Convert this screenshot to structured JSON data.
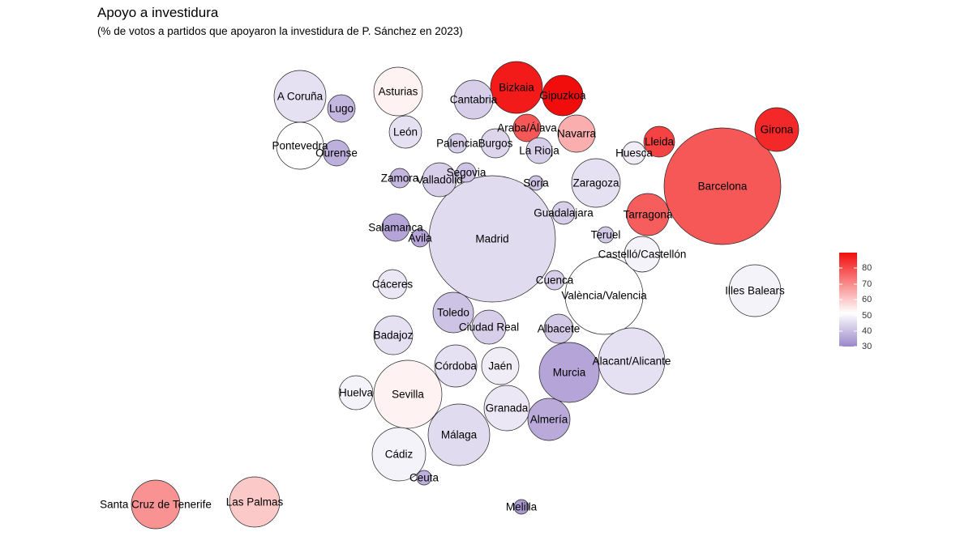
{
  "chart_data": {
    "type": "bubble",
    "title": "Apoyo a investidura",
    "subtitle": "(% de votos a partidos que apoyaron la investidura de P. Sánchez en 2023)",
    "legend": {
      "position": "right",
      "ticks": [
        80,
        70,
        60,
        50,
        40,
        30
      ],
      "range": [
        30,
        86
      ],
      "colors": {
        "low": "#9b86c9",
        "mid": "#ffffff",
        "high": "#f20d0d",
        "midpoint": 50
      }
    },
    "points": [
      {
        "name": "A Coruña",
        "value": 45
      },
      {
        "name": "Lugo",
        "value": 38
      },
      {
        "name": "Asturias",
        "value": 52
      },
      {
        "name": "Cantabria",
        "value": 42
      },
      {
        "name": "Bizkaia",
        "value": 84
      },
      {
        "name": "Gipuzkoa",
        "value": 88
      },
      {
        "name": "Pontevedra",
        "value": 50
      },
      {
        "name": "Ourense",
        "value": 37
      },
      {
        "name": "León",
        "value": 45
      },
      {
        "name": "Palencia",
        "value": 42
      },
      {
        "name": "Burgos",
        "value": 43
      },
      {
        "name": "Araba/Álava",
        "value": 75
      },
      {
        "name": "Navarra",
        "value": 62
      },
      {
        "name": "La Rioja",
        "value": 42
      },
      {
        "name": "Lleida",
        "value": 78
      },
      {
        "name": "Girona",
        "value": 82
      },
      {
        "name": "Huesca",
        "value": 47
      },
      {
        "name": "Zamora",
        "value": 38
      },
      {
        "name": "Valladolid",
        "value": 42
      },
      {
        "name": "Segovia",
        "value": 40
      },
      {
        "name": "Soria",
        "value": 40
      },
      {
        "name": "Zaragoza",
        "value": 45
      },
      {
        "name": "Barcelona",
        "value": 75
      },
      {
        "name": "Guadalajara",
        "value": 42
      },
      {
        "name": "Tarragona",
        "value": 74
      },
      {
        "name": "Salamanca",
        "value": 35
      },
      {
        "name": "Ávila",
        "value": 35
      },
      {
        "name": "Madrid",
        "value": 44
      },
      {
        "name": "Teruel",
        "value": 41
      },
      {
        "name": "Castelló/Castellón",
        "value": 48
      },
      {
        "name": "Cáceres",
        "value": 46
      },
      {
        "name": "Cuenca",
        "value": 42
      },
      {
        "name": "València/Valencia",
        "value": 50
      },
      {
        "name": "Illes Balears",
        "value": 48
      },
      {
        "name": "Toledo",
        "value": 40
      },
      {
        "name": "Ciudad Real",
        "value": 42
      },
      {
        "name": "Badajoz",
        "value": 45
      },
      {
        "name": "Albacete",
        "value": 41
      },
      {
        "name": "Córdoba",
        "value": 45
      },
      {
        "name": "Jaén",
        "value": 47
      },
      {
        "name": "Murcia",
        "value": 35
      },
      {
        "name": "Alacant/Alicante",
        "value": 45
      },
      {
        "name": "Huelva",
        "value": 48
      },
      {
        "name": "Sevilla",
        "value": 52
      },
      {
        "name": "Granada",
        "value": 46
      },
      {
        "name": "Almería",
        "value": 36
      },
      {
        "name": "Málaga",
        "value": 44
      },
      {
        "name": "Cádiz",
        "value": 48
      },
      {
        "name": "Ceuta",
        "value": 37
      },
      {
        "name": "Melilla",
        "value": 33
      },
      {
        "name": "Santa Cruz de Tenerife",
        "value": 66
      },
      {
        "name": "Las Palmas",
        "value": 58
      }
    ]
  }
}
